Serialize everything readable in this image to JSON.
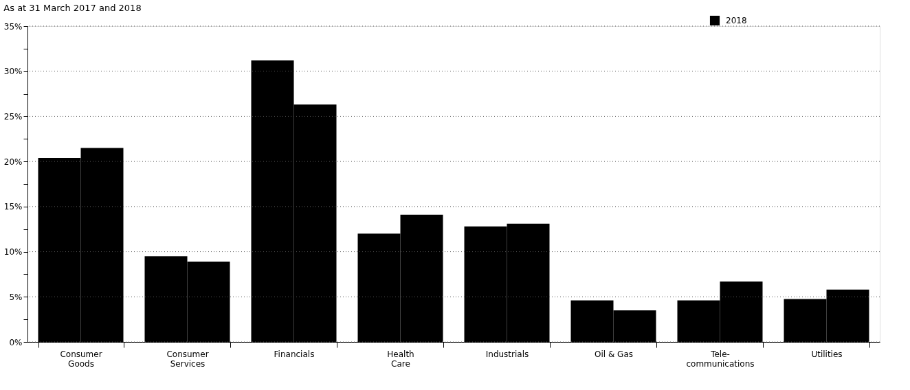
{
  "chart_data": {
    "type": "bar",
    "title": "As at 31 March 2017 and 2018",
    "categories": [
      "Consumer Goods",
      "Consumer Services",
      "Financials",
      "Health Care",
      "Industrials",
      "Oil & Gas",
      "Tele-communications",
      "Utilities"
    ],
    "series": [
      {
        "color": "#000000",
        "values": [
          20.4,
          9.5,
          31.2,
          12.0,
          12.8,
          4.6,
          4.6,
          4.75
        ]
      },
      {
        "name": "2018",
        "color": "#000000",
        "values": [
          21.5,
          8.9,
          26.3,
          14.1,
          13.1,
          3.5,
          6.7,
          5.8
        ]
      }
    ],
    "ylim": [
      0,
      35
    ],
    "yticks": [
      {
        "value": 0,
        "label": "0%"
      },
      {
        "value": 2.5,
        "label": null
      },
      {
        "value": 5,
        "label": "5%"
      },
      {
        "value": 7.5,
        "label": null
      },
      {
        "value": 10,
        "label": "10%"
      },
      {
        "value": 12.5,
        "label": null
      },
      {
        "value": 15,
        "label": "15%"
      },
      {
        "value": 17.5,
        "label": null
      },
      {
        "value": 20,
        "label": "20%"
      },
      {
        "value": 22.5,
        "label": null
      },
      {
        "value": 25,
        "label": "25%"
      },
      {
        "value": 27.5,
        "label": null
      },
      {
        "value": 30,
        "label": "30%"
      },
      {
        "value": 32.5,
        "label": null
      },
      {
        "value": 35,
        "label": "35%"
      }
    ],
    "grid": "y",
    "legend": "top right"
  }
}
